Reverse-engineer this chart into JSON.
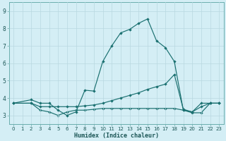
{
  "xlabel": "Humidex (Indice chaleur)",
  "background_color": "#d4eef5",
  "grid_color": "#b8d8e0",
  "line_color": "#1a7070",
  "xlim": [
    -0.5,
    23.5
  ],
  "ylim": [
    2.5,
    9.5
  ],
  "xticks": [
    0,
    1,
    2,
    3,
    4,
    5,
    6,
    7,
    8,
    9,
    10,
    11,
    12,
    13,
    14,
    15,
    16,
    17,
    18,
    19,
    20,
    21,
    22,
    23
  ],
  "yticks": [
    3,
    4,
    5,
    6,
    7,
    8,
    9
  ],
  "figsize": [
    3.2,
    2.0
  ],
  "dpi": 100,
  "line1_x": [
    0,
    2,
    3,
    4,
    5,
    6,
    7,
    8,
    9,
    10,
    11,
    12,
    13,
    14,
    15,
    16,
    17,
    18,
    19,
    20,
    21,
    22,
    23
  ],
  "line1_y": [
    3.7,
    3.9,
    3.7,
    3.7,
    3.3,
    3.0,
    3.2,
    4.45,
    4.4,
    6.1,
    7.0,
    7.75,
    7.95,
    8.3,
    8.55,
    7.3,
    6.9,
    6.1,
    3.3,
    3.2,
    3.7,
    3.7,
    3.7
  ],
  "line2_x": [
    0,
    2,
    3,
    4,
    5,
    6,
    7,
    8,
    9,
    10,
    11,
    12,
    13,
    14,
    15,
    16,
    17,
    18,
    19,
    20,
    21,
    22,
    23
  ],
  "line2_y": [
    3.7,
    3.7,
    3.5,
    3.5,
    3.5,
    3.5,
    3.5,
    3.55,
    3.6,
    3.7,
    3.85,
    4.0,
    4.15,
    4.3,
    4.5,
    4.65,
    4.8,
    5.35,
    3.35,
    3.2,
    3.5,
    3.7,
    3.7
  ],
  "line3_x": [
    0,
    2,
    3,
    4,
    5,
    6,
    7,
    8,
    9,
    10,
    11,
    12,
    13,
    14,
    15,
    16,
    17,
    18,
    19,
    20,
    21,
    22,
    23
  ],
  "line3_y": [
    3.7,
    3.7,
    3.3,
    3.2,
    3.0,
    3.2,
    3.3,
    3.3,
    3.35,
    3.4,
    3.4,
    3.4,
    3.4,
    3.4,
    3.4,
    3.4,
    3.4,
    3.4,
    3.3,
    3.15,
    3.15,
    3.7,
    3.7
  ]
}
